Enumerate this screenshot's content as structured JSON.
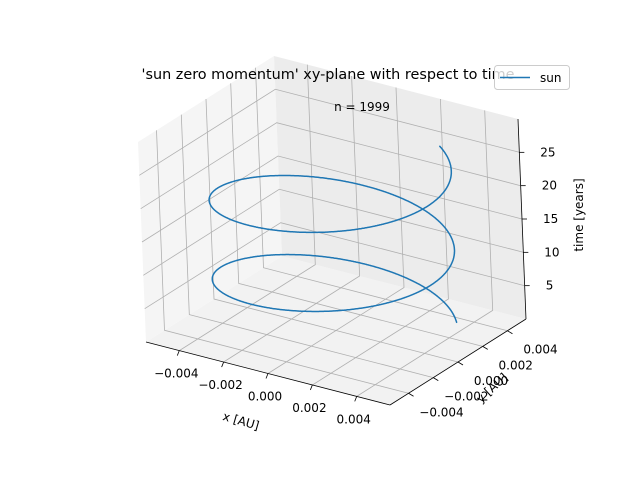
{
  "chart_data": {
    "type": "line",
    "projection": "3d",
    "title": "'sun zero momentum' xy-plane with respect to time",
    "annotation": "n = 1999",
    "xlabel": "x [AU]",
    "ylabel": "y [AU]",
    "zlabel": "time [years]",
    "xlim": [
      -0.0055,
      0.0055
    ],
    "ylim": [
      -0.0055,
      0.0055
    ],
    "zlim": [
      0,
      30
    ],
    "x_ticks": [
      "−0.004",
      "−0.002",
      "0.000",
      "0.002",
      "0.004"
    ],
    "y_ticks": [
      "−0.004",
      "−0.002",
      "0.000",
      "0.002",
      "0.004"
    ],
    "z_ticks": [
      "5",
      "10",
      "15",
      "20",
      "25"
    ],
    "grid": true,
    "legend": {
      "position": "top-right",
      "entries": [
        "sun"
      ]
    },
    "series": [
      {
        "name": "sun",
        "color": "#1f77b4",
        "orbit_period_years": 11.86,
        "t_start": 1.2,
        "t_end": 25.5,
        "points": 1999,
        "orbit_radius_au": 0.0048
      }
    ]
  }
}
